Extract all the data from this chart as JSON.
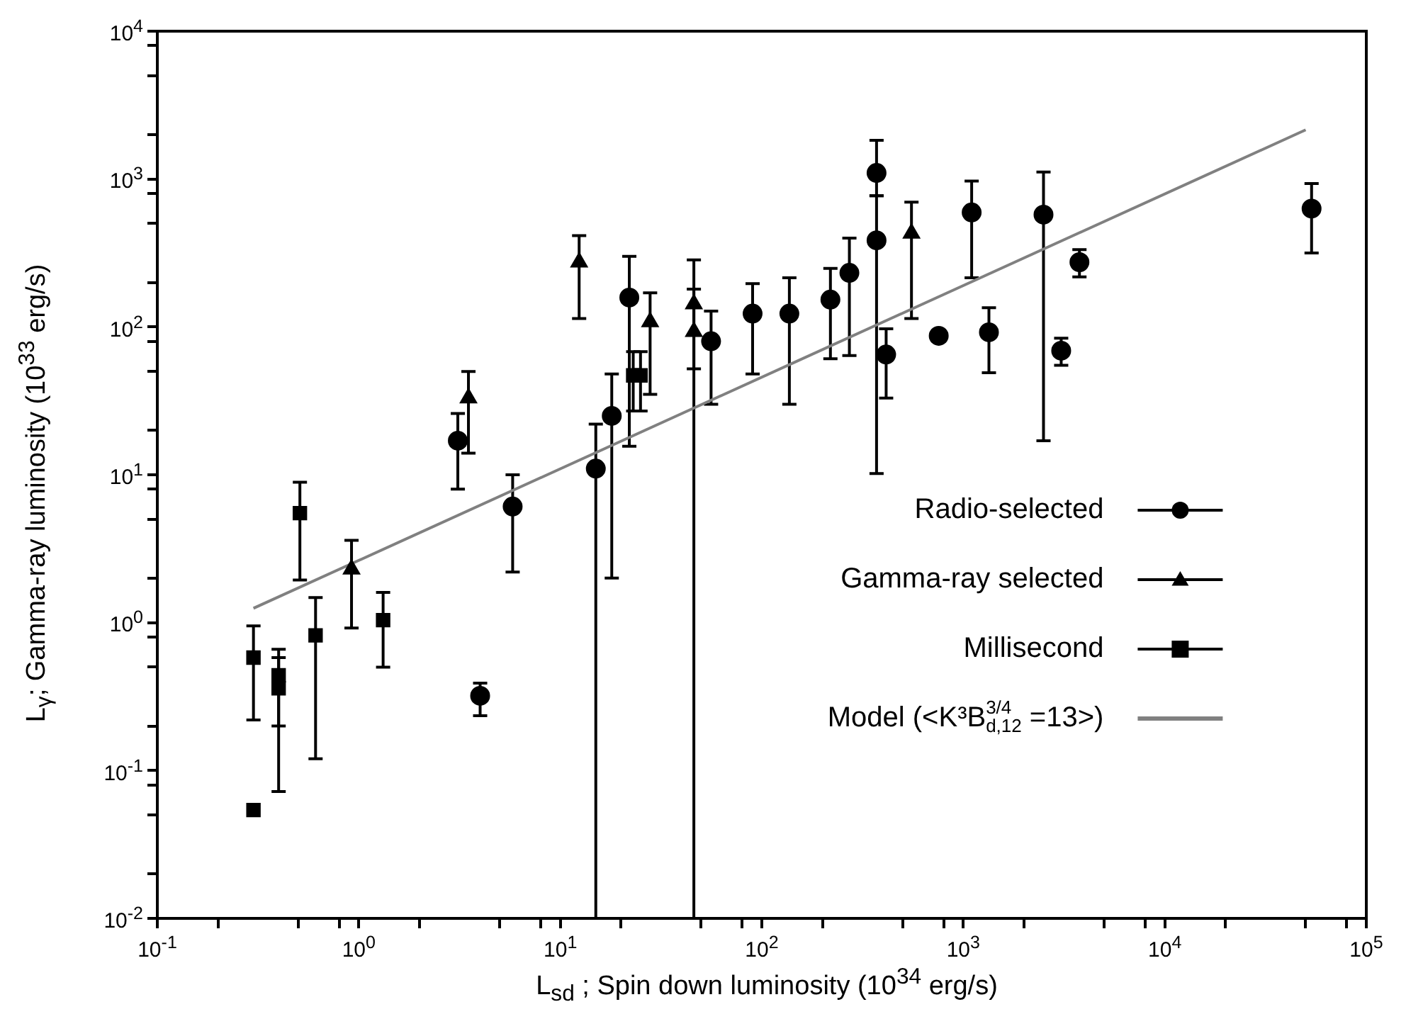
{
  "chart_data": {
    "type": "scatter",
    "xlabel": "L$_{sd}$ ; Spin down luminosity (10$^{34}$ erg/s)",
    "ylabel": "L$_{γ}$; Gamma-ray luminosity (10$^{33}$ erg/s)",
    "log": "xy",
    "grid": false,
    "legend": "bottom right",
    "xlim": [
      0.1,
      100000
    ],
    "ylim": [
      0.01,
      10000
    ],
    "xticks": [
      {
        "value": 0.1,
        "label": "10$^{-1}$"
      },
      {
        "value": 0.2,
        "label": null
      },
      {
        "value": 0.5,
        "label": null
      },
      {
        "value": 0.8,
        "label": null
      },
      {
        "value": 1,
        "label": "10$^{0}$"
      },
      {
        "value": 2,
        "label": null
      },
      {
        "value": 5,
        "label": null
      },
      {
        "value": 8,
        "label": null
      },
      {
        "value": 10,
        "label": "10$^{1}$"
      },
      {
        "value": 20,
        "label": null
      },
      {
        "value": 50,
        "label": null
      },
      {
        "value": 80,
        "label": null
      },
      {
        "value": 100,
        "label": "10$^{2}$"
      },
      {
        "value": 200,
        "label": null
      },
      {
        "value": 500,
        "label": null
      },
      {
        "value": 800,
        "label": null
      },
      {
        "value": 1000,
        "label": "10$^{3}$"
      },
      {
        "value": 2000,
        "label": null
      },
      {
        "value": 5000,
        "label": null
      },
      {
        "value": 8000,
        "label": null
      },
      {
        "value": 10000,
        "label": "10$^{4}$"
      },
      {
        "value": 20000,
        "label": null
      },
      {
        "value": 50000,
        "label": null
      },
      {
        "value": 80000,
        "label": null
      },
      {
        "value": 100000,
        "label": "10$^{5}$"
      }
    ],
    "yticks": [
      {
        "value": 0.01,
        "label": "10$^{-2}$"
      },
      {
        "value": 0.02,
        "label": null
      },
      {
        "value": 0.05,
        "label": null
      },
      {
        "value": 0.08,
        "label": null
      },
      {
        "value": 0.1,
        "label": "10$^{-1}$"
      },
      {
        "value": 0.2,
        "label": null
      },
      {
        "value": 0.5,
        "label": null
      },
      {
        "value": 0.8,
        "label": null
      },
      {
        "value": 1,
        "label": "10$^{0}$"
      },
      {
        "value": 2,
        "label": null
      },
      {
        "value": 5,
        "label": null
      },
      {
        "value": 8,
        "label": null
      },
      {
        "value": 10,
        "label": "10$^{1}$"
      },
      {
        "value": 20,
        "label": null
      },
      {
        "value": 50,
        "label": null
      },
      {
        "value": 80,
        "label": null
      },
      {
        "value": 100,
        "label": "10$^{2}$"
      },
      {
        "value": 200,
        "label": null
      },
      {
        "value": 500,
        "label": null
      },
      {
        "value": 800,
        "label": null
      },
      {
        "value": 1000,
        "label": "10$^{3}$"
      },
      {
        "value": 2000,
        "label": null
      },
      {
        "value": 5000,
        "label": null
      },
      {
        "value": 8000,
        "label": null
      },
      {
        "value": 10000,
        "label": "10$^{4}$"
      }
    ],
    "series": [
      {
        "name": "Radio-selected",
        "type": "scatter",
        "marker": "circle",
        "color": "#000000",
        "x": [
          3.1,
          4.0,
          5.8,
          15,
          18,
          22,
          56,
          90,
          137,
          219,
          272,
          371,
          371,
          414,
          755,
          1100,
          1340,
          2500,
          3060,
          3770,
          53500
        ],
        "values": [
          17,
          0.32,
          6.1,
          11,
          25,
          158,
          80,
          123,
          123,
          153,
          232,
          1100,
          385,
          65,
          87,
          594,
          92,
          574,
          69,
          274,
          631
        ],
        "errors": [
          [
            8,
            26
          ],
          [
            0.235,
            0.39
          ],
          [
            2.2,
            10
          ],
          [
            0.01,
            22
          ],
          [
            2,
            48
          ],
          [
            15.6,
            300
          ],
          [
            30,
            128
          ],
          [
            48,
            196
          ],
          [
            30,
            215
          ],
          [
            61,
            249
          ],
          [
            64,
            399
          ],
          [
            770,
            1830
          ],
          [
            10.2,
            770
          ],
          [
            33,
            97
          ],
          [
            80,
            95
          ],
          [
            215,
            968
          ],
          [
            49,
            135
          ],
          [
            17,
            1117
          ],
          [
            55,
            84
          ],
          [
            218,
            333
          ],
          [
            316,
            933
          ]
        ]
      },
      {
        "name": "Gamma-ray selected",
        "type": "scatter",
        "marker": "triangle",
        "color": "#000000",
        "x": [
          0.92,
          3.5,
          12.4,
          27.9,
          46,
          46,
          553
        ],
        "values": [
          2.3,
          33,
          274,
          108,
          143,
          93,
          430
        ],
        "errors": [
          [
            0.92,
            3.6
          ],
          [
            14,
            50
          ],
          [
            114,
            414
          ],
          [
            35,
            170
          ],
          [
            0.01,
            284
          ],
          [
            52,
            180
          ],
          [
            114,
            698
          ]
        ]
      },
      {
        "name": "Millisecond",
        "type": "scatter",
        "marker": "square",
        "color": "#000000",
        "x": [
          0.3,
          0.3,
          0.4,
          0.4,
          0.51,
          0.61,
          1.32,
          23,
          25
        ],
        "values": [
          0.58,
          0.054,
          0.44,
          0.36,
          5.5,
          0.82,
          1.04,
          47,
          47
        ],
        "errors": [
          [
            0.22,
            0.95
          ],
          null,
          [
            0.072,
            0.66
          ],
          [
            0.2,
            0.58
          ],
          [
            1.94,
            8.9
          ],
          [
            0.12,
            1.48
          ],
          [
            0.5,
            1.6
          ],
          [
            27,
            68
          ],
          [
            27,
            68
          ]
        ]
      },
      {
        "name": "Model (<K³B$_{d,12}$$^{3/4}$ =13>)",
        "type": "line",
        "marker": "none",
        "line_style": "solid",
        "color": "#808080",
        "x": [
          0.3,
          50000
        ],
        "values": [
          1.25,
          2150
        ]
      }
    ]
  }
}
